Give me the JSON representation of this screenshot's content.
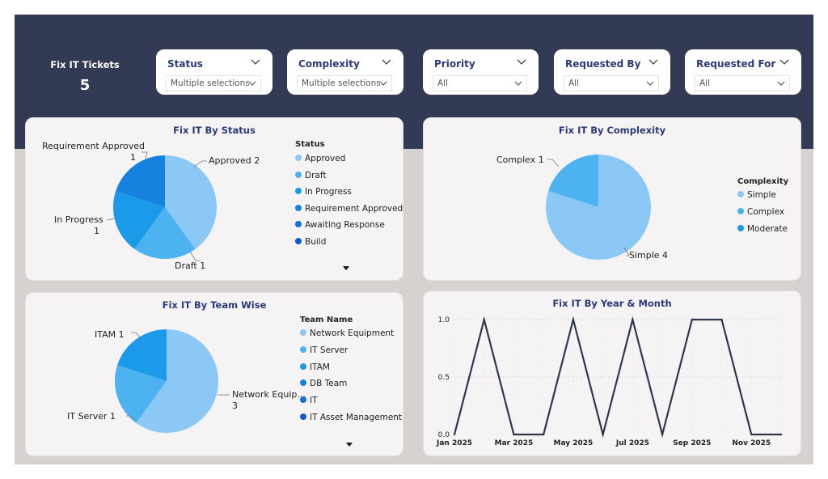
{
  "kpi": {
    "label": "Fix IT Tickets",
    "value": "5"
  },
  "slicers": [
    {
      "title": "Status",
      "value": "Multiple selections"
    },
    {
      "title": "Complexity",
      "value": "Multiple selections"
    },
    {
      "title": "Priority",
      "value": "All"
    },
    {
      "title": "Requested By",
      "value": "All"
    },
    {
      "title": "Requested For",
      "value": "All"
    }
  ],
  "icons": {
    "slicer_chevron": "chevron-down-icon",
    "legend_more": "caret-down-icon"
  },
  "colors": {
    "header_bg": "#333a55",
    "title": "#2b3a78",
    "slice1": "#8cc8f5",
    "slice2": "#4db3f0",
    "slice3": "#1a9ae8",
    "slice4": "#1582e0",
    "slice5": "#1270d8",
    "slice6": "#0a5bd0",
    "line": "#2f3650"
  },
  "status_chart": {
    "title": "Fix IT By Status",
    "legend_title": "Status",
    "legend": [
      "Approved",
      "Draft",
      "In Progress",
      "Requirement Approved",
      "Awaiting Response",
      "Build"
    ],
    "labels": {
      "approved": "Approved 2",
      "draft": "Draft 1",
      "in_progress_1": "In Progress",
      "in_progress_2": "1",
      "req_1": "Requirement Approved",
      "req_2": "1"
    }
  },
  "complexity_chart": {
    "title": "Fix IT By Complexity",
    "legend_title": "Complexity",
    "legend": [
      "Simple",
      "Complex",
      "Moderate"
    ],
    "labels": {
      "complex": "Complex 1",
      "simple": "Simple 4"
    }
  },
  "team_chart": {
    "title": "Fix IT By Team Wise",
    "legend_title": "Team Name",
    "legend": [
      "Network Equipment",
      "IT Server",
      "ITAM",
      "DB Team",
      "IT",
      "IT Asset Management"
    ],
    "labels": {
      "itam": "ITAM 1",
      "it_server": "IT Server 1",
      "network_1": "Network Equip...",
      "network_2": "3"
    }
  },
  "line_chart_meta": {
    "title": "Fix IT By Year & Month"
  },
  "chart_data": [
    {
      "type": "pie",
      "title": "Fix IT By Status",
      "legend_title": "Status",
      "categories": [
        "Approved",
        "Draft",
        "In Progress",
        "Requirement Approved"
      ],
      "values": [
        2,
        1,
        1,
        1
      ]
    },
    {
      "type": "pie",
      "title": "Fix IT By Complexity",
      "legend_title": "Complexity",
      "categories": [
        "Simple",
        "Complex"
      ],
      "values": [
        4,
        1
      ]
    },
    {
      "type": "pie",
      "title": "Fix IT By Team Wise",
      "legend_title": "Team Name",
      "categories": [
        "Network Equipment",
        "IT Server",
        "ITAM"
      ],
      "values": [
        3,
        1,
        1
      ]
    },
    {
      "type": "line",
      "title": "Fix IT By Year & Month",
      "x": [
        "Jan 2025",
        "Feb 2025",
        "Mar 2025",
        "Apr 2025",
        "May 2025",
        "Jun 2025",
        "Jul 2025",
        "Aug 2025",
        "Sep 2025",
        "Oct 2025",
        "Nov 2025",
        "Dec 2025"
      ],
      "x_tick_labels": [
        "Jan 2025",
        "Mar 2025",
        "May 2025",
        "Jul 2025",
        "Sep 2025",
        "Nov 2025"
      ],
      "y_tick_labels": [
        "0.0",
        "0.5",
        "1.0"
      ],
      "series": [
        {
          "values": [
            0,
            1,
            0,
            0,
            1,
            0,
            1,
            0,
            1,
            1,
            0,
            0
          ]
        }
      ],
      "ylim": [
        0,
        1
      ],
      "grid": true
    }
  ]
}
